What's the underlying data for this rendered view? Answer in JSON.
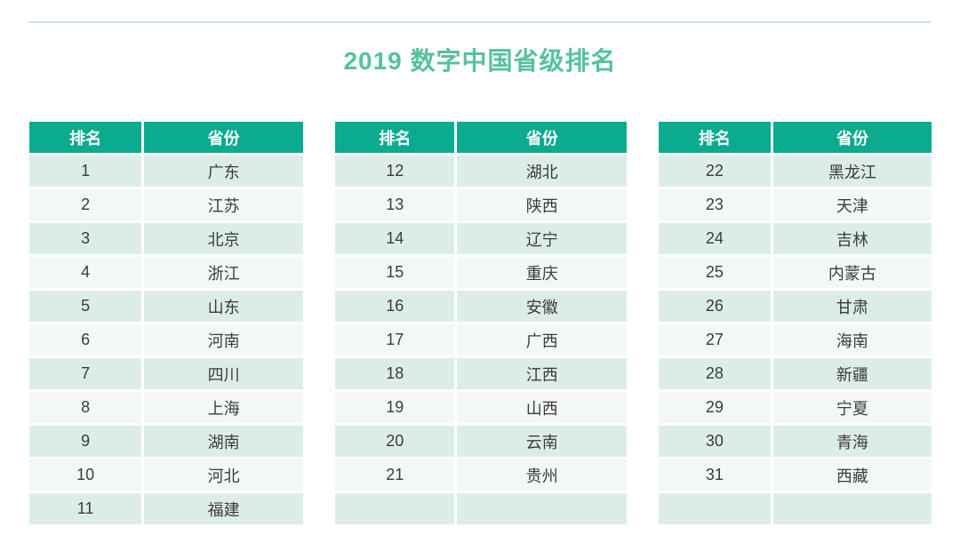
{
  "page": {
    "title": "2019 数字中国省级排名",
    "colors": {
      "header_bg": "#0aab8f",
      "row_odd_bg": "#dcede7",
      "row_even_bg": "#f3f8f5",
      "title_text": "#54c29d",
      "top_line": "#c9e6e1",
      "cell_text": "#3b3b3b",
      "header_text": "#ffffff"
    }
  },
  "tables": [
    {
      "headers": {
        "rank": "排名",
        "province": "省份"
      },
      "rows": [
        {
          "rank": "1",
          "province": "广东"
        },
        {
          "rank": "2",
          "province": "江苏"
        },
        {
          "rank": "3",
          "province": "北京"
        },
        {
          "rank": "4",
          "province": "浙江"
        },
        {
          "rank": "5",
          "province": "山东"
        },
        {
          "rank": "6",
          "province": "河南"
        },
        {
          "rank": "7",
          "province": "四川"
        },
        {
          "rank": "8",
          "province": "上海"
        },
        {
          "rank": "9",
          "province": "湖南"
        },
        {
          "rank": "10",
          "province": "河北"
        },
        {
          "rank": "11",
          "province": "福建"
        }
      ]
    },
    {
      "headers": {
        "rank": "排名",
        "province": "省份"
      },
      "rows": [
        {
          "rank": "12",
          "province": "湖北"
        },
        {
          "rank": "13",
          "province": "陕西"
        },
        {
          "rank": "14",
          "province": "辽宁"
        },
        {
          "rank": "15",
          "province": "重庆"
        },
        {
          "rank": "16",
          "province": "安徽"
        },
        {
          "rank": "17",
          "province": "广西"
        },
        {
          "rank": "18",
          "province": "江西"
        },
        {
          "rank": "19",
          "province": "山西"
        },
        {
          "rank": "20",
          "province": "云南"
        },
        {
          "rank": "21",
          "province": "贵州"
        },
        {
          "rank": "",
          "province": ""
        }
      ]
    },
    {
      "headers": {
        "rank": "排名",
        "province": "省份"
      },
      "rows": [
        {
          "rank": "22",
          "province": "黑龙江"
        },
        {
          "rank": "23",
          "province": "天津"
        },
        {
          "rank": "24",
          "province": "吉林"
        },
        {
          "rank": "25",
          "province": "内蒙古"
        },
        {
          "rank": "26",
          "province": "甘肃"
        },
        {
          "rank": "27",
          "province": "海南"
        },
        {
          "rank": "28",
          "province": "新疆"
        },
        {
          "rank": "29",
          "province": "宁夏"
        },
        {
          "rank": "30",
          "province": "青海"
        },
        {
          "rank": "31",
          "province": "西藏"
        },
        {
          "rank": "",
          "province": ""
        }
      ]
    }
  ],
  "chart_data": {
    "type": "table",
    "title": "2019 数字中国省级排名",
    "columns": [
      "排名",
      "省份"
    ],
    "rows": [
      [
        1,
        "广东"
      ],
      [
        2,
        "江苏"
      ],
      [
        3,
        "北京"
      ],
      [
        4,
        "浙江"
      ],
      [
        5,
        "山东"
      ],
      [
        6,
        "河南"
      ],
      [
        7,
        "四川"
      ],
      [
        8,
        "上海"
      ],
      [
        9,
        "湖南"
      ],
      [
        10,
        "河北"
      ],
      [
        11,
        "福建"
      ],
      [
        12,
        "湖北"
      ],
      [
        13,
        "陕西"
      ],
      [
        14,
        "辽宁"
      ],
      [
        15,
        "重庆"
      ],
      [
        16,
        "安徽"
      ],
      [
        17,
        "广西"
      ],
      [
        18,
        "江西"
      ],
      [
        19,
        "山西"
      ],
      [
        20,
        "云南"
      ],
      [
        21,
        "贵州"
      ],
      [
        22,
        "黑龙江"
      ],
      [
        23,
        "天津"
      ],
      [
        24,
        "吉林"
      ],
      [
        25,
        "内蒙古"
      ],
      [
        26,
        "甘肃"
      ],
      [
        27,
        "海南"
      ],
      [
        28,
        "新疆"
      ],
      [
        29,
        "宁夏"
      ],
      [
        30,
        "青海"
      ],
      [
        31,
        "西藏"
      ]
    ],
    "layout": {
      "split_into_columns": 3,
      "zebra_striping": true
    }
  }
}
